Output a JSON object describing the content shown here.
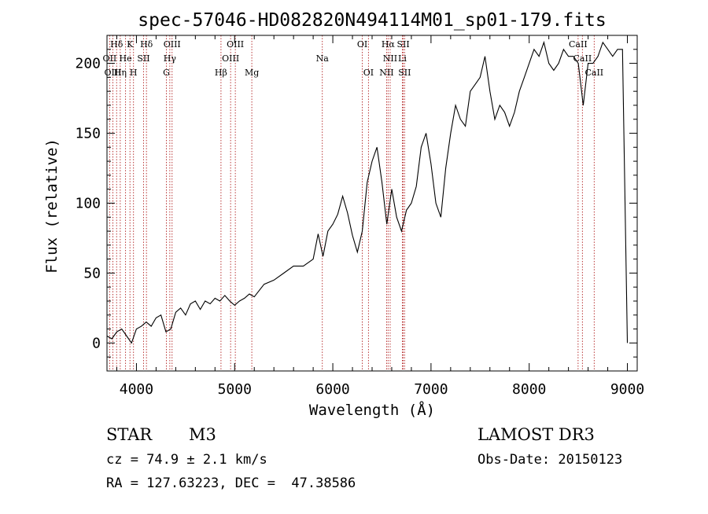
{
  "chart_data": {
    "type": "line",
    "title": "spec-57046-HD082820N494114M01_sp01-179.fits",
    "xlabel": "Wavelength (Å)",
    "ylabel": "Flux (relative)",
    "xlim": [
      3700,
      9100
    ],
    "ylim": [
      -20,
      220
    ],
    "x_ticks": [
      4000,
      5000,
      6000,
      7000,
      8000,
      9000
    ],
    "y_ticks": [
      0,
      50,
      100,
      150,
      200
    ],
    "grid": false,
    "series": [
      {
        "x": [
          3700,
          3750,
          3800,
          3850,
          3900,
          3950,
          4000,
          4050,
          4100,
          4150,
          4200,
          4250,
          4300,
          4350,
          4400,
          4450,
          4500,
          4550,
          4600,
          4650,
          4700,
          4750,
          4800,
          4850,
          4900,
          4950,
          5000,
          5050,
          5100,
          5150,
          5200,
          5300,
          5400,
          5500,
          5600,
          5700,
          5800,
          5850,
          5900,
          5950,
          6000,
          6050,
          6100,
          6150,
          6200,
          6250,
          6300,
          6350,
          6400,
          6450,
          6500,
          6550,
          6600,
          6650,
          6700,
          6750,
          6800,
          6850,
          6900,
          6950,
          7000,
          7050,
          7100,
          7150,
          7200,
          7250,
          7300,
          7350,
          7400,
          7450,
          7500,
          7550,
          7600,
          7650,
          7700,
          7750,
          7800,
          7850,
          7900,
          7950,
          8000,
          8050,
          8100,
          8150,
          8200,
          8250,
          8300,
          8350,
          8400,
          8450,
          8500,
          8550,
          8600,
          8650,
          8700,
          8750,
          8800,
          8850,
          8900,
          8950,
          9000
        ],
        "y": [
          5,
          3,
          8,
          10,
          5,
          0,
          10,
          12,
          15,
          12,
          18,
          20,
          8,
          10,
          22,
          25,
          20,
          28,
          30,
          24,
          30,
          28,
          32,
          30,
          34,
          30,
          27,
          30,
          32,
          35,
          33,
          42,
          45,
          50,
          55,
          55,
          60,
          78,
          62,
          80,
          85,
          92,
          105,
          93,
          77,
          65,
          80,
          115,
          130,
          140,
          115,
          85,
          110,
          90,
          80,
          95,
          100,
          112,
          140,
          150,
          128,
          100,
          90,
          125,
          150,
          170,
          160,
          155,
          180,
          185,
          190,
          205,
          180,
          160,
          170,
          165,
          155,
          165,
          180,
          190,
          200,
          210,
          205,
          215,
          200,
          195,
          200,
          210,
          205,
          205,
          200,
          170,
          200,
          200,
          205,
          215,
          210,
          205,
          210,
          210,
          0
        ]
      }
    ]
  },
  "lines": [
    {
      "label": "Hδ",
      "row": 0,
      "wl": 3798
    },
    {
      "label": "K",
      "row": 0,
      "wl": 3934
    },
    {
      "label": "Hδ",
      "row": 0,
      "wl": 4102
    },
    {
      "label": "OIII",
      "row": 0,
      "wl": 4363
    },
    {
      "label": "OIII",
      "row": 0,
      "wl": 5007
    },
    {
      "label": "OI",
      "row": 0,
      "wl": 6300
    },
    {
      "label": "Hα",
      "row": 0,
      "wl": 6563
    },
    {
      "label": "SII",
      "row": 0,
      "wl": 6717
    },
    {
      "label": "CaII",
      "row": 0,
      "wl": 8498
    },
    {
      "label": "OII",
      "row": 1,
      "wl": 3727
    },
    {
      "label": "He",
      "row": 1,
      "wl": 3889
    },
    {
      "label": "SII",
      "row": 1,
      "wl": 4072
    },
    {
      "label": "Hγ",
      "row": 1,
      "wl": 4340
    },
    {
      "label": "OIII",
      "row": 1,
      "wl": 4959
    },
    {
      "label": "Na",
      "row": 1,
      "wl": 5893
    },
    {
      "label": "NII",
      "row": 1,
      "wl": 6584
    },
    {
      "label": "Li",
      "row": 1,
      "wl": 6708
    },
    {
      "label": "CaII",
      "row": 1,
      "wl": 8542
    },
    {
      "label": "OIII",
      "row": 2,
      "wl": 3760
    },
    {
      "label": "Hη",
      "row": 2,
      "wl": 3835
    },
    {
      "label": "H",
      "row": 2,
      "wl": 3970
    },
    {
      "label": "G",
      "row": 2,
      "wl": 4305
    },
    {
      "label": "Hβ",
      "row": 2,
      "wl": 4861
    },
    {
      "label": "Mg",
      "row": 2,
      "wl": 5175
    },
    {
      "label": "OI",
      "row": 2,
      "wl": 6363
    },
    {
      "label": "NII",
      "row": 2,
      "wl": 6548
    },
    {
      "label": "SII",
      "row": 2,
      "wl": 6731
    },
    {
      "label": "CaII",
      "row": 2,
      "wl": 8662
    }
  ],
  "info": {
    "object_class": "STAR",
    "subclass": "M3",
    "survey": "LAMOST DR3",
    "cz": "cz = 74.9 ± 2.1 km/s",
    "obs_date": "Obs-Date: 20150123",
    "coords": "RA = 127.63223, DEC =  47.38586"
  },
  "colors": {
    "line_marker": "#b22222",
    "spectrum": "#000000",
    "axis": "#000000"
  }
}
